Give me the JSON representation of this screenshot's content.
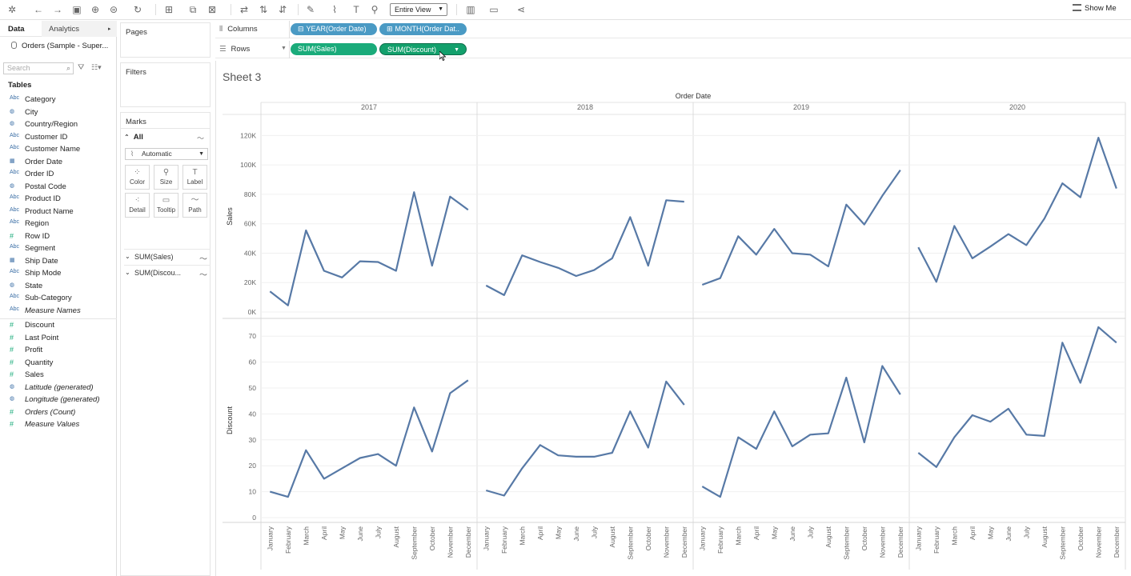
{
  "toolbar": {
    "view_select": "Entire View",
    "show_me": "Show Me",
    "icons": [
      "tableau-logo-icon",
      "back-icon",
      "forward-icon",
      "save-icon",
      "new-datasource-icon",
      "datasource-icon",
      "refresh-icon",
      "new-worksheet-icon",
      "duplicate-icon",
      "clear-icon",
      "swap-icon",
      "sort-asc-icon",
      "sort-desc-icon",
      "highlight-icon",
      "group-icon",
      "label-text-icon",
      "pin-icon",
      "fit-icon",
      "presentation-icon",
      "share-icon"
    ]
  },
  "data_pane": {
    "tab_data": "Data",
    "tab_analytics": "Analytics",
    "datasource": "Orders (Sample - Super...",
    "search_placeholder": "Search",
    "tables_label": "Tables",
    "dimensions": [
      {
        "type": "Abc",
        "name": "Category"
      },
      {
        "type": "geo",
        "name": "City"
      },
      {
        "type": "geo",
        "name": "Country/Region"
      },
      {
        "type": "Abc",
        "name": "Customer ID"
      },
      {
        "type": "Abc",
        "name": "Customer Name"
      },
      {
        "type": "date",
        "name": "Order Date"
      },
      {
        "type": "Abc",
        "name": "Order ID"
      },
      {
        "type": "geo",
        "name": "Postal Code"
      },
      {
        "type": "Abc",
        "name": "Product ID"
      },
      {
        "type": "Abc",
        "name": "Product Name"
      },
      {
        "type": "Abc",
        "name": "Region"
      },
      {
        "type": "#",
        "name": "Row ID"
      },
      {
        "type": "Abc",
        "name": "Segment"
      },
      {
        "type": "date",
        "name": "Ship Date"
      },
      {
        "type": "Abc",
        "name": "Ship Mode"
      },
      {
        "type": "geo",
        "name": "State"
      },
      {
        "type": "Abc",
        "name": "Sub-Category"
      },
      {
        "type": "Abc",
        "name": "Measure Names",
        "italic": true
      }
    ],
    "measures": [
      {
        "type": "#",
        "name": "Discount"
      },
      {
        "type": "#",
        "name": "Last Point"
      },
      {
        "type": "#",
        "name": "Profit"
      },
      {
        "type": "#",
        "name": "Quantity"
      },
      {
        "type": "#",
        "name": "Sales"
      },
      {
        "type": "geo",
        "name": "Latitude (generated)",
        "italic": true
      },
      {
        "type": "geo",
        "name": "Longitude (generated)",
        "italic": true
      },
      {
        "type": "#",
        "name": "Orders (Count)",
        "italic": true
      },
      {
        "type": "#",
        "name": "Measure Values",
        "italic": true
      }
    ]
  },
  "mid_pane": {
    "pages": "Pages",
    "filters": "Filters",
    "marks": "Marks",
    "all": "All",
    "mark_type": "Automatic",
    "buttons": [
      "Color",
      "Size",
      "Label",
      "Detail",
      "Tooltip",
      "Path"
    ],
    "rows": [
      "SUM(Sales)",
      "SUM(Discou..."
    ]
  },
  "shelves": {
    "columns_label": "Columns",
    "rows_label": "Rows",
    "columns_pills": [
      "YEAR(Order Date)",
      "MONTH(Order Dat.."
    ],
    "rows_pills": [
      "SUM(Sales)",
      "SUM(Discount)"
    ]
  },
  "viz": {
    "sheet_title": "Sheet 3"
  },
  "chart_data": {
    "type": "line",
    "x_header": "Order Date",
    "columns": [
      "2017",
      "2018",
      "2019",
      "2020"
    ],
    "categories": [
      "January",
      "February",
      "March",
      "April",
      "May",
      "June",
      "July",
      "August",
      "September",
      "October",
      "November",
      "December"
    ],
    "rows": [
      {
        "measure": "Sales",
        "ylabel": "Sales",
        "ylim": [
          0,
          130000
        ],
        "ticks": [
          0,
          20000,
          40000,
          60000,
          80000,
          100000,
          120000
        ],
        "tick_labels": [
          "0K",
          "20K",
          "40K",
          "60K",
          "80K",
          "100K",
          "120K"
        ],
        "series": {
          "2017": [
            14000,
            4500,
            55500,
            28000,
            23500,
            34500,
            34000,
            28000,
            81500,
            31500,
            78500,
            69500
          ],
          "2018": [
            18000,
            11500,
            38500,
            34000,
            30000,
            24500,
            28500,
            36500,
            64500,
            31500,
            76000,
            75000
          ],
          "2019": [
            18500,
            23000,
            51500,
            39000,
            56500,
            40000,
            39000,
            31000,
            73000,
            59500,
            79000,
            96500
          ],
          "2020": [
            44000,
            20500,
            58500,
            36500,
            44500,
            53000,
            45500,
            63500,
            87500,
            78000,
            118500,
            84000
          ]
        }
      },
      {
        "measure": "Discount",
        "ylabel": "Discount",
        "ylim": [
          0,
          75
        ],
        "ticks": [
          0,
          10,
          20,
          30,
          40,
          50,
          60,
          70
        ],
        "tick_labels": [
          "0",
          "10",
          "20",
          "30",
          "40",
          "50",
          "60",
          "70"
        ],
        "series": {
          "2017": [
            10,
            8,
            26,
            15,
            19,
            23,
            24.5,
            20,
            42.5,
            25.5,
            48,
            53
          ],
          "2018": [
            10.5,
            8.5,
            19,
            28,
            24,
            23.5,
            23.5,
            25,
            41,
            27,
            52.5,
            43.5
          ],
          "2019": [
            12,
            8,
            31,
            26.5,
            41,
            27.5,
            32,
            32.5,
            54,
            29,
            58.5,
            47.5
          ],
          "2020": [
            25,
            19.5,
            31,
            39.5,
            37,
            42,
            32,
            31.5,
            67.5,
            52,
            73.5,
            67.5
          ]
        }
      }
    ],
    "line_color": "#5779a6"
  }
}
